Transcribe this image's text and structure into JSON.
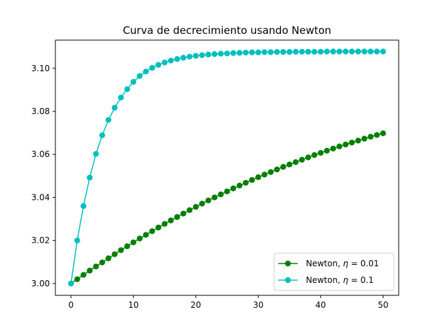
{
  "chart_data": {
    "type": "line",
    "title": "Curva de decrecimiento usando Newton",
    "xlabel": "",
    "ylabel": "",
    "xlim": [
      -2.5,
      52.5
    ],
    "ylim": [
      2.9945,
      3.1131
    ],
    "xticks": [
      0,
      10,
      20,
      30,
      40,
      50
    ],
    "yticks": [
      3.0,
      3.02,
      3.04,
      3.06,
      3.08,
      3.1
    ],
    "ytick_labels": [
      "3.00",
      "3.02",
      "3.04",
      "3.06",
      "3.08",
      "3.10"
    ],
    "grid": false,
    "legend_position": "lower right",
    "series": [
      {
        "legend_prefix": "Newton, ",
        "legend_symbol": "η",
        "legend_suffix": " = 0.01",
        "color": "#008000",
        "marker": "circle",
        "x": [
          0,
          1,
          2,
          3,
          4,
          5,
          6,
          7,
          8,
          9,
          10,
          11,
          12,
          13,
          14,
          15,
          16,
          17,
          18,
          19,
          20,
          21,
          22,
          23,
          24,
          25,
          26,
          27,
          28,
          29,
          30,
          31,
          32,
          33,
          34,
          35,
          36,
          37,
          38,
          39,
          40,
          41,
          42,
          43,
          44,
          45,
          46,
          47,
          48,
          49,
          50
        ],
        "values": [
          3.0,
          3.002,
          3.004,
          3.006,
          3.0079,
          3.0098,
          3.0117,
          3.0136,
          3.0155,
          3.0173,
          3.0191,
          3.0209,
          3.0226,
          3.0243,
          3.026,
          3.0277,
          3.0293,
          3.0309,
          3.0325,
          3.0341,
          3.0356,
          3.0371,
          3.0386,
          3.04,
          3.0414,
          3.0428,
          3.0442,
          3.0455,
          3.0468,
          3.0481,
          3.0494,
          3.0506,
          3.0518,
          3.053,
          3.0542,
          3.0553,
          3.0564,
          3.0575,
          3.0586,
          3.0597,
          3.0607,
          3.0617,
          3.0627,
          3.0637,
          3.0646,
          3.0655,
          3.0664,
          3.0673,
          3.0682,
          3.069,
          3.0698
        ]
      },
      {
        "legend_prefix": "Newton, ",
        "legend_symbol": "η",
        "legend_suffix": " = 0.1",
        "color": "#00bfbf",
        "marker": "circle",
        "x": [
          0,
          1,
          2,
          3,
          4,
          5,
          6,
          7,
          8,
          9,
          10,
          11,
          12,
          13,
          14,
          15,
          16,
          17,
          18,
          19,
          20,
          21,
          22,
          23,
          24,
          25,
          26,
          27,
          28,
          29,
          30,
          31,
          32,
          33,
          34,
          35,
          36,
          37,
          38,
          39,
          40,
          41,
          42,
          43,
          44,
          45,
          46,
          47,
          48,
          49,
          50
        ],
        "values": [
          3.0,
          3.02,
          3.036,
          3.0492,
          3.0602,
          3.0689,
          3.076,
          3.0817,
          3.0864,
          3.0903,
          3.0937,
          3.0964,
          3.0985,
          3.1002,
          3.1016,
          3.1027,
          3.1036,
          3.1043,
          3.1049,
          3.1054,
          3.1058,
          3.1061,
          3.1064,
          3.1066,
          3.1068,
          3.1069,
          3.1071,
          3.1072,
          3.1073,
          3.1074,
          3.1074,
          3.1075,
          3.1075,
          3.1076,
          3.1076,
          3.1076,
          3.1077,
          3.1077,
          3.1077,
          3.1077,
          3.1077,
          3.1078,
          3.1078,
          3.1078,
          3.1078,
          3.1078,
          3.1078,
          3.1078,
          3.1078,
          3.1078,
          3.1078
        ]
      }
    ]
  }
}
